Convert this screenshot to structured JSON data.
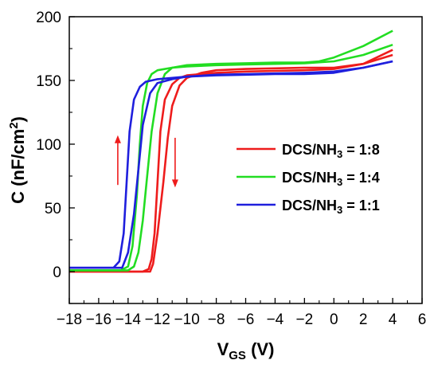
{
  "chart_data": {
    "type": "line",
    "title": "",
    "xlabel": "V_GS (V)",
    "xlabel_main": "V",
    "xlabel_sub": "GS",
    "xlabel_unit": " (V)",
    "ylabel": "C (nF/cm2)",
    "ylabel_main": "C (nF/cm",
    "ylabel_sup": "2",
    "ylabel_end": ")",
    "xlim": [
      -18,
      6
    ],
    "ylim": [
      -25,
      200
    ],
    "xticks": [
      -18,
      -16,
      -14,
      -12,
      -10,
      -8,
      -6,
      -4,
      -2,
      0,
      2,
      4,
      6
    ],
    "xtick_labels": [
      "−18",
      "−16",
      "−14",
      "−12",
      "−10",
      "−8",
      "−6",
      "−4",
      "−2",
      "0",
      "2",
      "4",
      "6"
    ],
    "yticks": [
      0,
      50,
      100,
      150,
      200
    ],
    "ytick_labels": [
      "0",
      "50",
      "100",
      "150",
      "200"
    ],
    "grid": false,
    "legend_position": "right",
    "series": [
      {
        "name": "DCS/NH3 = 1:8",
        "legend_main": "DCS/NH",
        "legend_sub": "3",
        "legend_end": " = 1:8",
        "color": "#ee1c1c",
        "sweeps": [
          {
            "x": [
              -18,
              -13,
              -12.6,
              -12.4,
              -12.2,
              -12.0,
              -11.8,
              -11.5,
              -11.0,
              -10.5,
              -10,
              -8,
              -6,
              -4,
              -2,
              0,
              2,
              4
            ],
            "y": [
              0,
              0,
              2,
              10,
              30,
              70,
              110,
              135,
              147,
              152,
              154,
              156,
              157,
              157.5,
              158,
              159,
              163,
              170
            ]
          },
          {
            "x": [
              4,
              2,
              0,
              -2,
              -4,
              -6,
              -8,
              -9,
              -10,
              -10.5,
              -11,
              -11.3,
              -11.6,
              -12.0,
              -12.3,
              -12.5,
              -13,
              -18
            ],
            "y": [
              174,
              163,
              160,
              160,
              159.5,
              159,
              158,
              156,
              152,
              146,
              130,
              105,
              70,
              30,
              6,
              0,
              0,
              0
            ]
          }
        ]
      },
      {
        "name": "DCS/NH3 = 1:4",
        "legend_main": "DCS/NH",
        "legend_sub": "3",
        "legend_end": " = 1:4",
        "color": "#22dd22",
        "sweeps": [
          {
            "x": [
              -18,
              -14.5,
              -14.0,
              -13.7,
              -13.4,
              -13.2,
              -13.0,
              -12.7,
              -12.4,
              -12.0,
              -11,
              -10,
              -8,
              -6,
              -4,
              -2,
              0,
              2,
              4
            ],
            "y": [
              1,
              1,
              4,
              20,
              60,
              100,
              130,
              148,
              155,
              158,
              160,
              161,
              162,
              162.5,
              163,
              163.5,
              165,
              170,
              178
            ]
          },
          {
            "x": [
              4,
              2,
              0,
              -1,
              -2,
              -4,
              -6,
              -8,
              -10,
              -11,
              -11.5,
              -12.0,
              -12.4,
              -12.7,
              -13.0,
              -13.3,
              -13.6,
              -14.0,
              -18
            ],
            "y": [
              189,
              177,
              168,
              165,
              164,
              164,
              163.5,
              163,
              162,
              160,
              155,
              140,
              110,
              75,
              40,
              15,
              4,
              1,
              1
            ]
          }
        ]
      },
      {
        "name": "DCS/NH3 = 1:1",
        "legend_main": "DCS/NH",
        "legend_sub": "3",
        "legend_end": " = 1:1",
        "color": "#1f1fdd",
        "sweeps": [
          {
            "x": [
              -18,
              -15.0,
              -14.6,
              -14.3,
              -14.1,
              -13.9,
              -13.6,
              -13.2,
              -12.8,
              -12,
              -10,
              -8,
              -6,
              -4,
              -2,
              0,
              2,
              4
            ],
            "y": [
              3,
              3,
              8,
              30,
              70,
              110,
              135,
              145,
              149,
              151,
              153,
              154,
              154.5,
              155,
              155,
              156,
              160,
              165
            ]
          },
          {
            "x": [
              4,
              2,
              0,
              -2,
              -4,
              -6,
              -8,
              -10,
              -11,
              -12,
              -12.5,
              -13.0,
              -13.3,
              -13.6,
              -14.0,
              -14.4,
              -18
            ],
            "y": [
              165,
              160,
              157,
              156,
              155.5,
              155,
              154.5,
              153,
              151,
              148,
              140,
              115,
              80,
              45,
              15,
              3,
              3
            ]
          }
        ]
      }
    ],
    "annotations": [
      {
        "name": "up-arrow",
        "color": "#ee1c1c",
        "x": -14.7,
        "y_from": 68,
        "y_to": 107
      },
      {
        "name": "down-arrow",
        "color": "#ee1c1c",
        "x": -10.8,
        "y_from": 105,
        "y_to": 66
      }
    ]
  }
}
